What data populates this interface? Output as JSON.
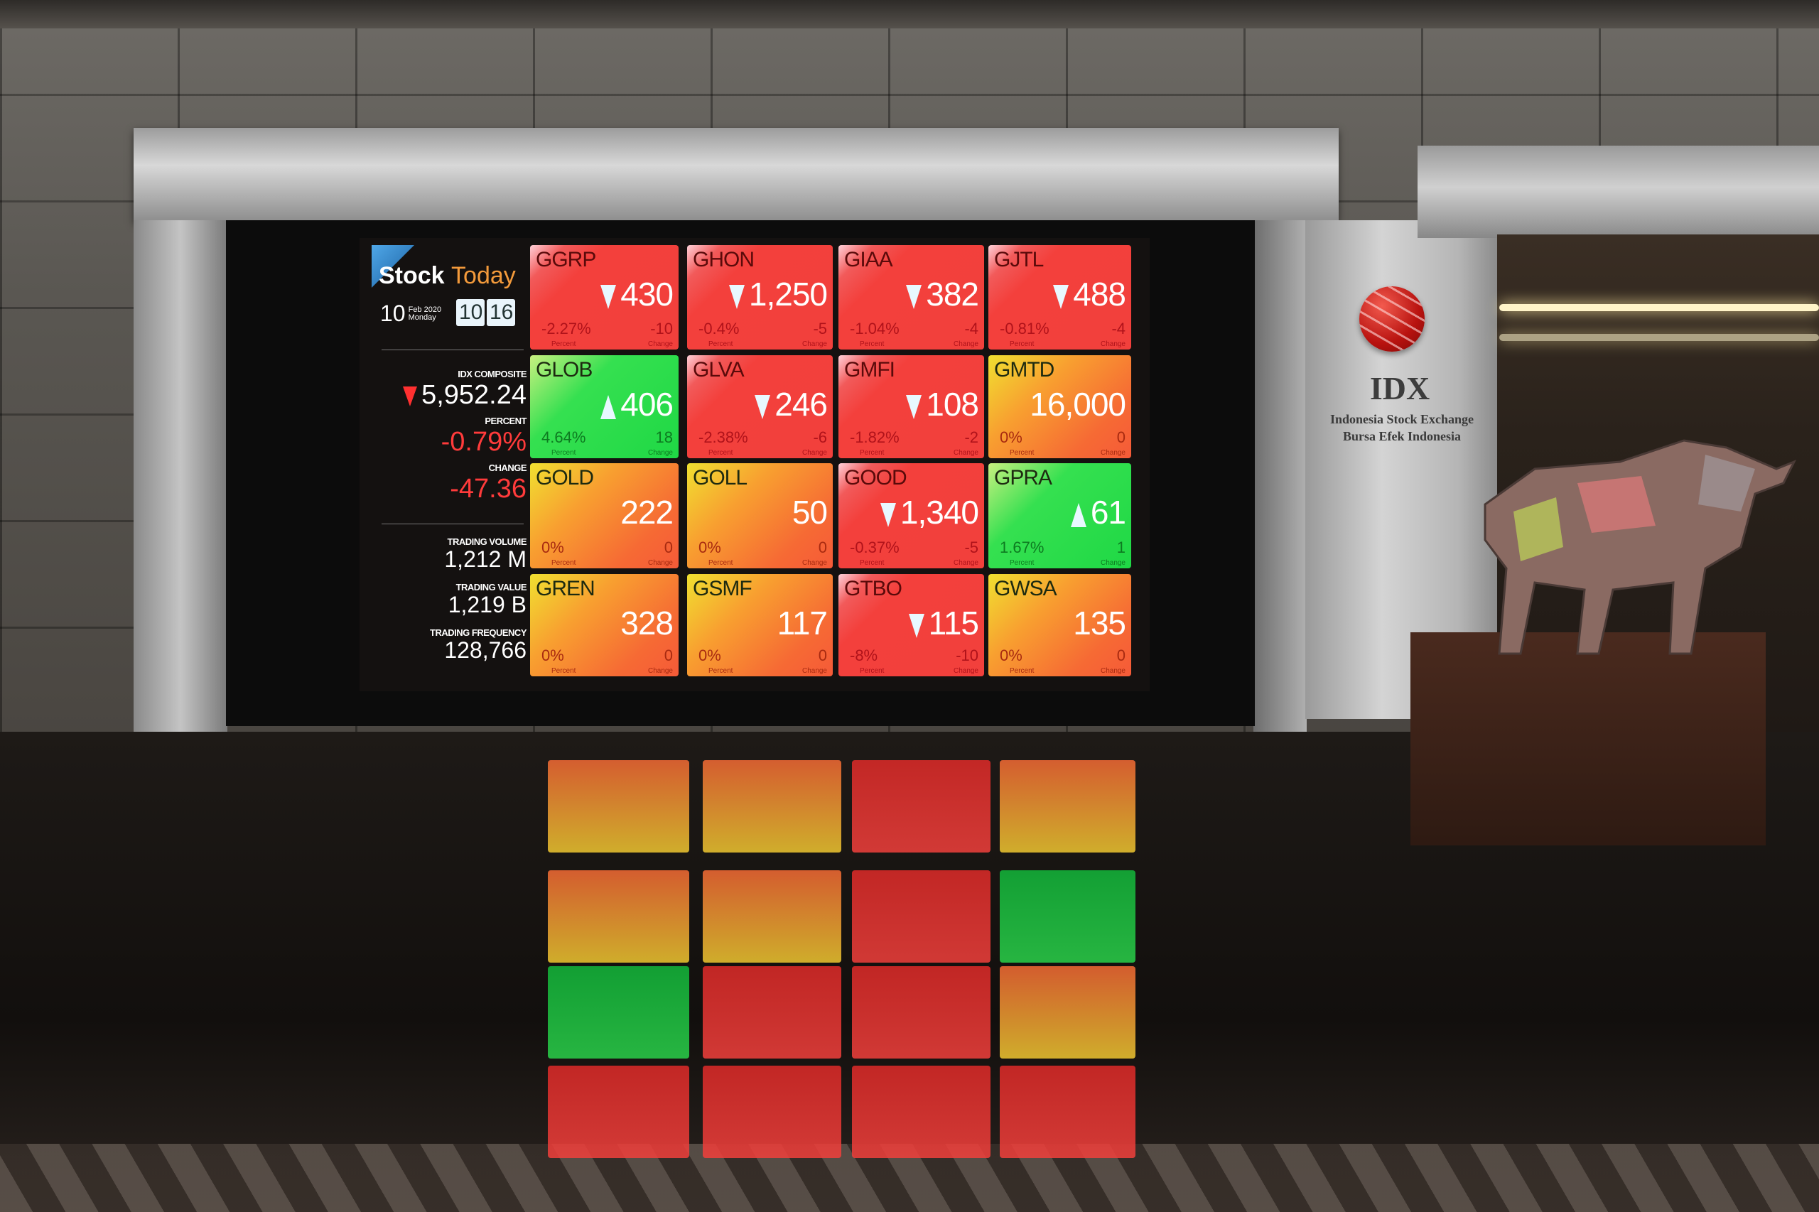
{
  "board": {
    "brand_left": "Stock",
    "brand_right": "Today",
    "date": {
      "day": "10",
      "month_year": "Feb 2020",
      "weekday": "Monday"
    },
    "clock": {
      "hour": "10",
      "minute": "16"
    },
    "index": {
      "label": "IDX COMPOSITE",
      "value": "5,952.24",
      "direction": "down",
      "percent_label": "PERCENT",
      "percent": "-0.79%",
      "change_label": "CHANGE",
      "change": "-47.36"
    },
    "stats": {
      "volume_label": "TRADING VOLUME",
      "volume": "1,212 M",
      "value_label": "TRADING VALUE",
      "value": "1,219 B",
      "frequency_label": "TRADING FREQUENCY",
      "frequency": "128,766"
    },
    "tile_percent_label": "Percent",
    "tile_change_label": "Change",
    "colors": {
      "down": "#f2403c",
      "up": "#1fd845",
      "flat": "#f6803a"
    },
    "tiles": [
      {
        "code": "GGRP",
        "price": "430",
        "dir": "down",
        "percent": "-2.27%",
        "change": "-10"
      },
      {
        "code": "GHON",
        "price": "1,250",
        "dir": "down",
        "percent": "-0.4%",
        "change": "-5"
      },
      {
        "code": "GIAA",
        "price": "382",
        "dir": "down",
        "percent": "-1.04%",
        "change": "-4"
      },
      {
        "code": "GJTL",
        "price": "488",
        "dir": "down",
        "percent": "-0.81%",
        "change": "-4"
      },
      {
        "code": "GLOB",
        "price": "406",
        "dir": "up",
        "percent": "4.64%",
        "change": "18"
      },
      {
        "code": "GLVA",
        "price": "246",
        "dir": "down",
        "percent": "-2.38%",
        "change": "-6"
      },
      {
        "code": "GMFI",
        "price": "108",
        "dir": "down",
        "percent": "-1.82%",
        "change": "-2"
      },
      {
        "code": "GMTD",
        "price": "16,000",
        "dir": "flat",
        "percent": "0%",
        "change": "0"
      },
      {
        "code": "GOLD",
        "price": "222",
        "dir": "flat",
        "percent": "0%",
        "change": "0"
      },
      {
        "code": "GOLL",
        "price": "50",
        "dir": "flat",
        "percent": "0%",
        "change": "0"
      },
      {
        "code": "GOOD",
        "price": "1,340",
        "dir": "down",
        "percent": "-0.37%",
        "change": "-5"
      },
      {
        "code": "GPRA",
        "price": "61",
        "dir": "up",
        "percent": "1.67%",
        "change": "1"
      },
      {
        "code": "GREN",
        "price": "328",
        "dir": "flat",
        "percent": "0%",
        "change": "0"
      },
      {
        "code": "GSMF",
        "price": "117",
        "dir": "flat",
        "percent": "0%",
        "change": "0"
      },
      {
        "code": "GTBO",
        "price": "115",
        "dir": "down",
        "percent": "-8%",
        "change": "-10"
      },
      {
        "code": "GWSA",
        "price": "135",
        "dir": "flat",
        "percent": "0%",
        "change": "0"
      }
    ]
  },
  "sign": {
    "logo": "IDX",
    "line1": "Indonesia Stock Exchange",
    "line2": "Bursa Efek Indonesia"
  }
}
